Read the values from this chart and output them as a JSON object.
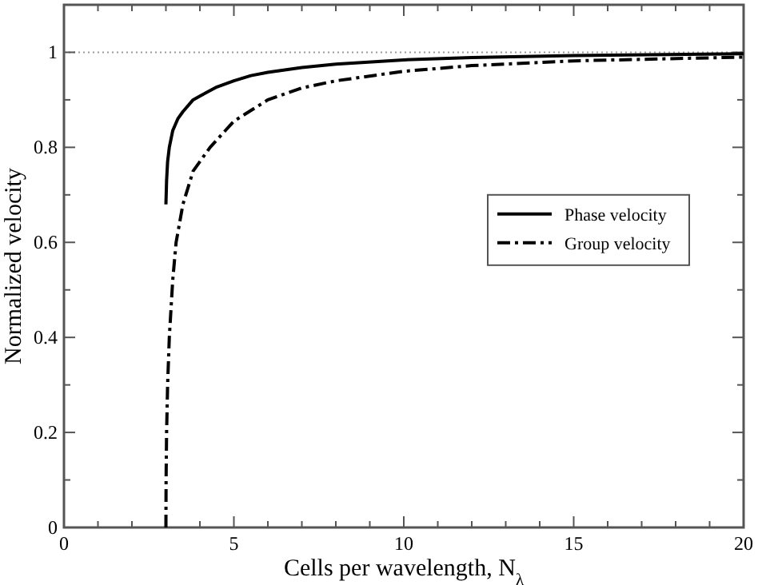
{
  "chart_data": {
    "type": "line",
    "xlabel": "Cells per wavelength, N$_{λ}$",
    "ylabel": "Normalized velocity",
    "xlim": [
      0,
      20
    ],
    "ylim": [
      0,
      1.1
    ],
    "xticks": [
      0,
      {
        "value": 1,
        "label": null
      },
      {
        "value": 2,
        "label": null
      },
      {
        "value": 3,
        "label": null
      },
      {
        "value": 4,
        "label": null
      },
      5,
      {
        "value": 6,
        "label": null
      },
      {
        "value": 7,
        "label": null
      },
      {
        "value": 8,
        "label": null
      },
      {
        "value": 9,
        "label": null
      },
      10,
      {
        "value": 11,
        "label": null
      },
      {
        "value": 12,
        "label": null
      },
      {
        "value": 13,
        "label": null
      },
      {
        "value": 14,
        "label": null
      },
      15,
      {
        "value": 16,
        "label": null
      },
      {
        "value": 17,
        "label": null
      },
      {
        "value": 18,
        "label": null
      },
      {
        "value": 19,
        "label": null
      },
      20
    ],
    "yticks": [
      0,
      {
        "value": 0.1,
        "label": null
      },
      0.2,
      {
        "value": 0.3,
        "label": null
      },
      0.4,
      {
        "value": 0.5,
        "label": null
      },
      0.6,
      {
        "value": 0.7,
        "label": null
      },
      0.8,
      {
        "value": 0.9,
        "label": null
      },
      1
    ],
    "legend": "right",
    "grid": false,
    "ref_lines": [
      {
        "axis": "y",
        "value": 1,
        "color": "#999999",
        "line_style": "dotted"
      }
    ],
    "series": [
      {
        "name": "Phase velocity",
        "color": "#000000",
        "line_style": "solid",
        "x": [
          3,
          3.02,
          3.05,
          3.1,
          3.2,
          3.35,
          3.5,
          3.8,
          4,
          4.5,
          5,
          5.5,
          6,
          7,
          8,
          10,
          12,
          15,
          20
        ],
        "values": [
          0.68,
          0.73,
          0.77,
          0.8,
          0.835,
          0.86,
          0.875,
          0.9,
          0.908,
          0.927,
          0.94,
          0.951,
          0.958,
          0.968,
          0.975,
          0.984,
          0.989,
          0.993,
          0.997
        ]
      },
      {
        "name": "Group velocity",
        "color": "#000000",
        "line_style": "dashdot",
        "x": [
          3,
          3.005,
          3.02,
          3.05,
          3.1,
          3.2,
          3.3,
          3.5,
          3.8,
          4.3,
          5,
          6,
          7,
          8,
          10,
          12,
          15,
          20
        ],
        "values": [
          0,
          0.1,
          0.2,
          0.3,
          0.4,
          0.52,
          0.6,
          0.68,
          0.75,
          0.8,
          0.855,
          0.9,
          0.925,
          0.94,
          0.96,
          0.972,
          0.982,
          0.99
        ]
      }
    ]
  }
}
